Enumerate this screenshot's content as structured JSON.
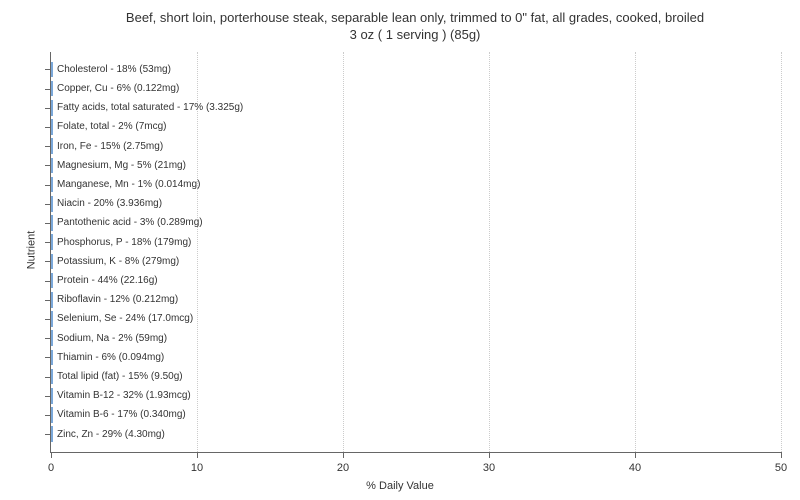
{
  "chart": {
    "type": "bar",
    "title_line1": "Beef, short loin, porterhouse steak, separable lean only, trimmed to 0\" fat,  all grades, cooked, broiled",
    "title_line2": "3 oz ( 1 serving ) (85g)",
    "title_fontsize": 13,
    "x_axis_label": "% Daily Value",
    "y_axis_label": "Nutrient",
    "axis_label_fontsize": 11,
    "bar_label_fontsize": 10,
    "xlim": [
      0,
      50
    ],
    "xtick_step": 10,
    "xticks": [
      0,
      10,
      20,
      30,
      40,
      50
    ],
    "bar_fill": "#b5d2f0",
    "bar_border": "#7ba8d9",
    "grid_color": "#cccccc",
    "axis_color": "#666666",
    "background_color": "#ffffff",
    "text_color": "#333333",
    "nutrients": [
      {
        "label": "Cholesterol - 18% (53mg)",
        "value": 18
      },
      {
        "label": "Copper, Cu - 6% (0.122mg)",
        "value": 6
      },
      {
        "label": "Fatty acids, total saturated - 17% (3.325g)",
        "value": 17
      },
      {
        "label": "Folate, total - 2% (7mcg)",
        "value": 2
      },
      {
        "label": "Iron, Fe - 15% (2.75mg)",
        "value": 15
      },
      {
        "label": "Magnesium, Mg - 5% (21mg)",
        "value": 5
      },
      {
        "label": "Manganese, Mn - 1% (0.014mg)",
        "value": 1
      },
      {
        "label": "Niacin - 20% (3.936mg)",
        "value": 20
      },
      {
        "label": "Pantothenic acid - 3% (0.289mg)",
        "value": 3
      },
      {
        "label": "Phosphorus, P - 18% (179mg)",
        "value": 18
      },
      {
        "label": "Potassium, K - 8% (279mg)",
        "value": 8
      },
      {
        "label": "Protein - 44% (22.16g)",
        "value": 44
      },
      {
        "label": "Riboflavin - 12% (0.212mg)",
        "value": 12
      },
      {
        "label": "Selenium, Se - 24% (17.0mcg)",
        "value": 24
      },
      {
        "label": "Sodium, Na - 2% (59mg)",
        "value": 2
      },
      {
        "label": "Thiamin - 6% (0.094mg)",
        "value": 6
      },
      {
        "label": "Total lipid (fat) - 15% (9.50g)",
        "value": 15
      },
      {
        "label": "Vitamin B-12 - 32% (1.93mcg)",
        "value": 32
      },
      {
        "label": "Vitamin B-6 - 17% (0.340mg)",
        "value": 17
      },
      {
        "label": "Zinc, Zn - 29% (4.30mg)",
        "value": 29
      }
    ]
  }
}
